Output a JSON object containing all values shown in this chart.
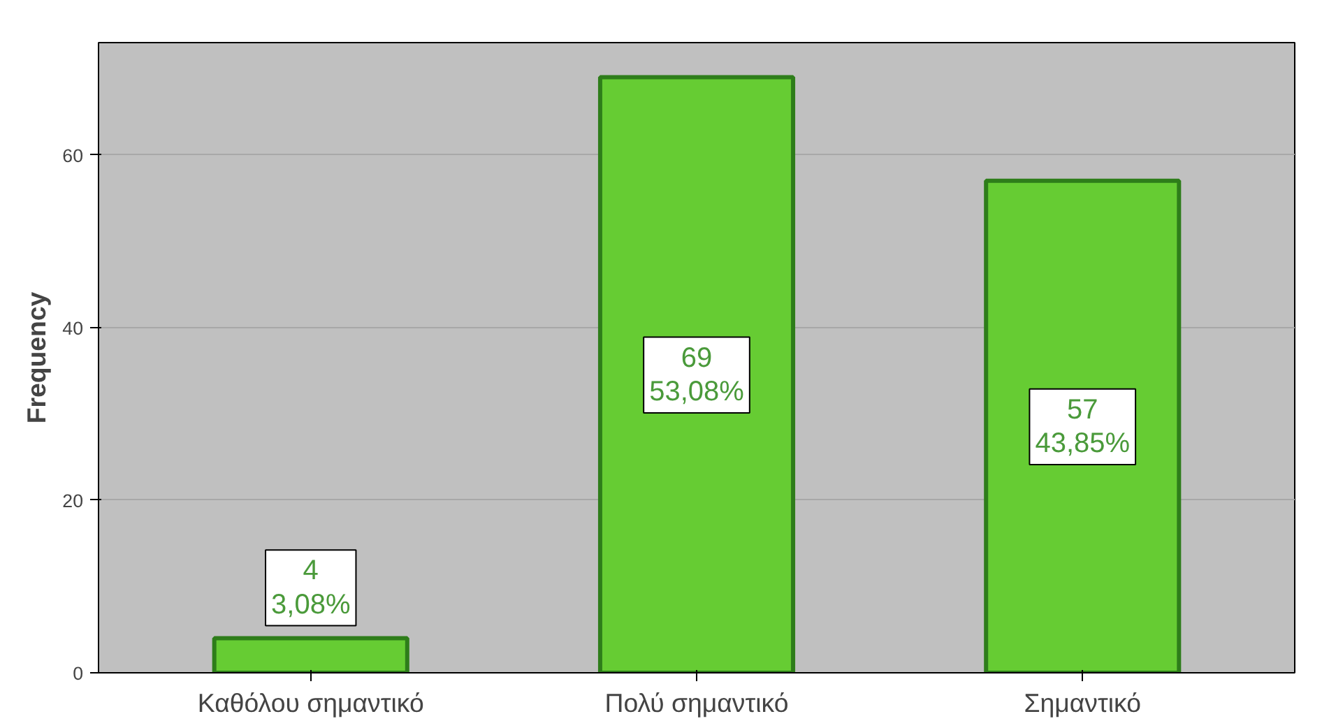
{
  "chart_data": {
    "type": "bar",
    "ylabel": "Frequency",
    "categories": [
      "Καθόλου σημαντικό",
      "Πολύ σημαντικό",
      "Σημαντικό"
    ],
    "values": [
      4,
      69,
      57
    ],
    "color": "#66cc33",
    "value_labels": [
      "4\n3,08%",
      "69\n53,08%",
      "57\n43,85%"
    ],
    "ylim": [
      0,
      73
    ],
    "yticks": [
      0,
      20,
      40,
      60
    ],
    "grid": "y"
  }
}
